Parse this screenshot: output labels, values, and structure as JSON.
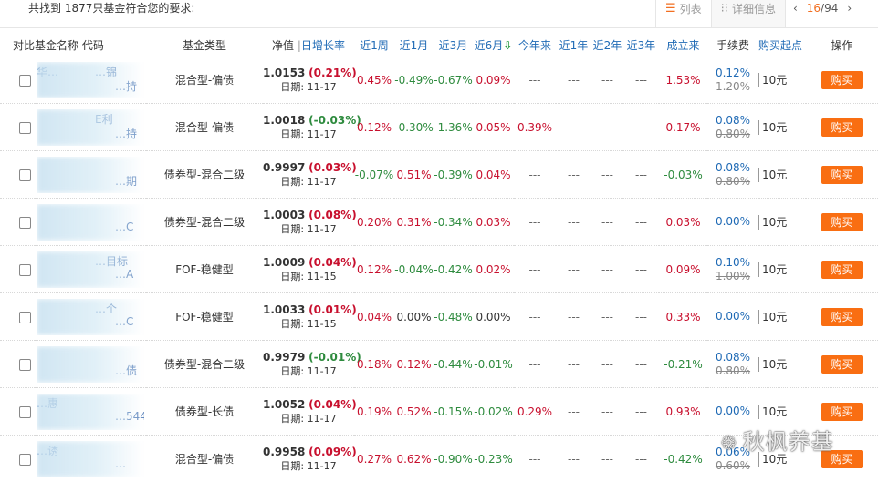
{
  "top": {
    "found_text": "共找到 1877只基金符合您的要求:",
    "view_list": "列表",
    "view_detail": "详细信息",
    "page_current": "16",
    "page_total": "/94",
    "prev_icon": "‹",
    "next_icon": "›"
  },
  "headers": {
    "compare": "对比",
    "name": "基金名称",
    "code": "代码",
    "type": "基金类型",
    "nav": "净值",
    "daily": "日增长率",
    "w1": "近1周",
    "m1": "近1月",
    "m3": "近3月",
    "m6": "近6月",
    "ytd": "今年来",
    "y1": "近1年",
    "y2": "近2年",
    "y3": "近3年",
    "since": "成立来",
    "fee": "手续费",
    "min_buy": "购买起点",
    "action": "操作"
  },
  "rows": [
    {
      "frag1": "华…",
      "frag2": "…锦",
      "frag3": "…持",
      "type": "混合型-偏债",
      "nav": "1.0153",
      "daily": "(0.21%)",
      "daily_dir": "up",
      "date": "日期: 11-17",
      "w1": "0.45%",
      "m1": "-0.49%",
      "m3": "-0.67%",
      "m6": "0.09%",
      "ytd": "---",
      "y1": "---",
      "y2": "---",
      "y3": "---",
      "since": "1.53%",
      "fee_new": "0.12%",
      "fee_old": "1.20%",
      "min_buy": "10元",
      "buy": "购买"
    },
    {
      "frag1": "",
      "frag2": "E利",
      "frag3": "…持",
      "type": "混合型-偏债",
      "nav": "1.0018",
      "daily": "(-0.03%)",
      "daily_dir": "down",
      "date": "日期: 11-17",
      "w1": "0.12%",
      "m1": "-0.30%",
      "m3": "-1.36%",
      "m6": "0.05%",
      "ytd": "0.39%",
      "y1": "---",
      "y2": "---",
      "y3": "---",
      "since": "0.17%",
      "fee_new": "0.08%",
      "fee_old": "0.80%",
      "min_buy": "10元",
      "buy": "购买"
    },
    {
      "frag1": "",
      "frag2": "",
      "frag3": "…期",
      "type": "债券型-混合二级",
      "nav": "0.9997",
      "daily": "(0.03%)",
      "daily_dir": "up",
      "date": "日期: 11-17",
      "w1": "-0.07%",
      "m1": "0.51%",
      "m3": "-0.39%",
      "m6": "0.04%",
      "ytd": "---",
      "y1": "---",
      "y2": "---",
      "y3": "---",
      "since": "-0.03%",
      "fee_new": "0.08%",
      "fee_old": "0.80%",
      "min_buy": "10元",
      "buy": "购买"
    },
    {
      "frag1": "",
      "frag2": "",
      "frag3": "…C",
      "type": "债券型-混合二级",
      "nav": "1.0003",
      "daily": "(0.08%)",
      "daily_dir": "up",
      "date": "日期: 11-17",
      "w1": "0.20%",
      "m1": "0.31%",
      "m3": "-0.34%",
      "m6": "0.03%",
      "ytd": "---",
      "y1": "---",
      "y2": "---",
      "y3": "---",
      "since": "0.03%",
      "fee_new": "0.00%",
      "fee_old": "",
      "min_buy": "10元",
      "buy": "购买"
    },
    {
      "frag1": "",
      "frag2": "…目标",
      "frag3": "…A",
      "type": "FOF-稳健型",
      "nav": "1.0009",
      "daily": "(0.04%)",
      "daily_dir": "up",
      "date": "日期: 11-15",
      "w1": "0.12%",
      "m1": "-0.04%",
      "m3": "-0.42%",
      "m6": "0.02%",
      "ytd": "---",
      "y1": "---",
      "y2": "---",
      "y3": "---",
      "since": "0.09%",
      "fee_new": "0.10%",
      "fee_old": "1.00%",
      "min_buy": "10元",
      "buy": "购买"
    },
    {
      "frag1": "",
      "frag2": "…个",
      "frag3": "…C",
      "type": "FOF-稳健型",
      "nav": "1.0033",
      "daily": "(0.01%)",
      "daily_dir": "up",
      "date": "日期: 11-15",
      "w1": "0.04%",
      "m1": "0.00%",
      "m3": "-0.48%",
      "m6": "0.00%",
      "ytd": "---",
      "y1": "---",
      "y2": "---",
      "y3": "---",
      "since": "0.33%",
      "fee_new": "0.00%",
      "fee_old": "",
      "min_buy": "10元",
      "buy": "购买"
    },
    {
      "frag1": "",
      "frag2": "",
      "frag3": "…债",
      "type": "债券型-混合二级",
      "nav": "0.9979",
      "daily": "(-0.01%)",
      "daily_dir": "down",
      "date": "日期: 11-17",
      "w1": "0.18%",
      "m1": "0.12%",
      "m3": "-0.44%",
      "m6": "-0.01%",
      "ytd": "---",
      "y1": "---",
      "y2": "---",
      "y3": "---",
      "since": "-0.21%",
      "fee_new": "0.08%",
      "fee_old": "0.80%",
      "min_buy": "10元",
      "buy": "购买"
    },
    {
      "frag1": "…惠",
      "frag2": "",
      "frag3": "…544",
      "type": "债券型-长债",
      "nav": "1.0052",
      "daily": "(0.04%)",
      "daily_dir": "up",
      "date": "日期: 11-17",
      "w1": "0.19%",
      "m1": "0.52%",
      "m3": "-0.15%",
      "m6": "-0.02%",
      "ytd": "0.29%",
      "y1": "---",
      "y2": "---",
      "y3": "---",
      "since": "0.93%",
      "fee_new": "0.00%",
      "fee_old": "",
      "min_buy": "10元",
      "buy": "购买"
    },
    {
      "frag1": "…诱",
      "frag2": "",
      "frag3": "…",
      "type": "混合型-偏债",
      "nav": "0.9958",
      "daily": "(0.09%)",
      "daily_dir": "up",
      "date": "日期: 11-17",
      "w1": "0.27%",
      "m1": "0.62%",
      "m3": "-0.90%",
      "m6": "-0.23%",
      "ytd": "---",
      "y1": "---",
      "y2": "---",
      "y3": "---",
      "since": "-0.42%",
      "fee_new": "0.06%",
      "fee_old": "0.60%",
      "min_buy": "10元",
      "buy": "购买"
    }
  ],
  "watermark": {
    "icon": "wechat-icon",
    "text": "秋枫养基"
  },
  "colors": {
    "up": "#c8102e",
    "down": "#2e8b3e",
    "accent": "#f96e12",
    "link": "#1f6ab5"
  }
}
